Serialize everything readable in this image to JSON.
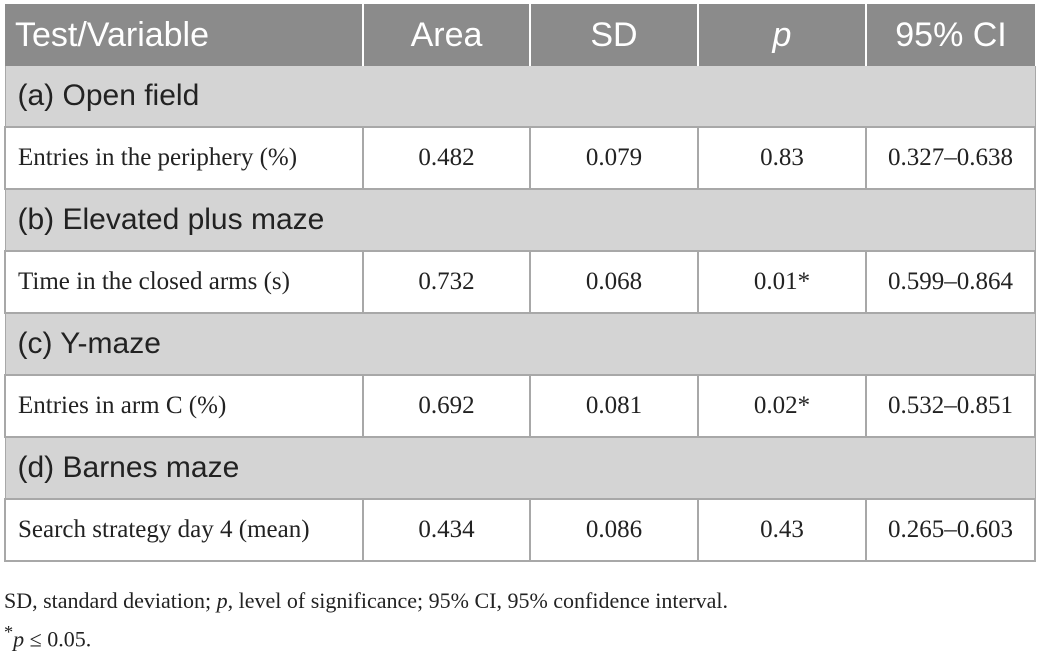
{
  "table": {
    "headers": {
      "test_variable": "Test/Variable",
      "area": "Area",
      "sd": "SD",
      "p": "p",
      "ci": "95% CI"
    },
    "sections": [
      {
        "title": "(a) Open field",
        "row": {
          "variable": "Entries in the periphery (%)",
          "area": "0.482",
          "sd": "0.079",
          "p": "0.83",
          "ci": "0.327–0.638"
        }
      },
      {
        "title": "(b) Elevated plus maze",
        "row": {
          "variable": "Time in the closed arms (s)",
          "area": "0.732",
          "sd": "0.068",
          "p": "0.01*",
          "ci": "0.599–0.864"
        }
      },
      {
        "title": "(c) Y-maze",
        "row": {
          "variable": "Entries in arm C (%)",
          "area": "0.692",
          "sd": "0.081",
          "p": "0.02*",
          "ci": "0.532–0.851"
        }
      },
      {
        "title": "(d) Barnes maze",
        "row": {
          "variable": "Search strategy day 4 (mean)",
          "area": "0.434",
          "sd": "0.086",
          "p": "0.43",
          "ci": "0.265–0.603"
        }
      }
    ]
  },
  "footnotes": {
    "line1_a": "SD, standard deviation; ",
    "line1_p": "p",
    "line1_b": ", level of significance; 95% CI, 95% confidence interval.",
    "line2_star": "*",
    "line2_p": "p",
    "line2_rest": " ≤ 0.05."
  }
}
